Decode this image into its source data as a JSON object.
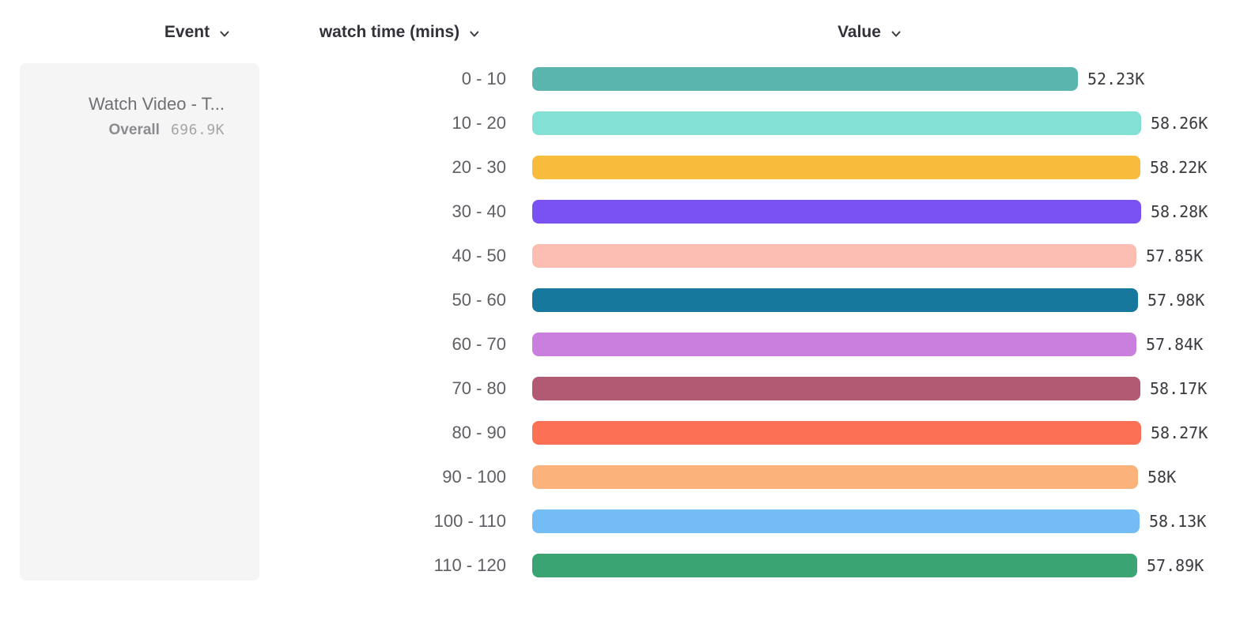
{
  "header": {
    "columns": [
      {
        "id": "event",
        "label": "Event"
      },
      {
        "id": "breakdown",
        "label": "watch time (mins)"
      },
      {
        "id": "value",
        "label": "Value"
      }
    ]
  },
  "event_card": {
    "title": "Watch Video - T...",
    "overall_label": "Overall",
    "overall_value": "696.9K"
  },
  "icons": {
    "chevron_color": "#3a3a40"
  },
  "chart_data": {
    "type": "bar",
    "orientation": "horizontal",
    "title": "",
    "xlabel": "Value",
    "ylabel": "watch time (mins)",
    "xlim": [
      0,
      58280
    ],
    "grid": false,
    "legend_position": "none",
    "categories": [
      "0 - 10",
      "10 - 20",
      "20 - 30",
      "30 - 40",
      "40 - 50",
      "50 - 60",
      "60 - 70",
      "70 - 80",
      "80 - 90",
      "90 - 100",
      "100 - 110",
      "110 - 120"
    ],
    "values": [
      52230,
      58260,
      58220,
      58280,
      57850,
      57980,
      57840,
      58170,
      58270,
      58000,
      58130,
      57890
    ],
    "value_labels": [
      "52.23K",
      "58.26K",
      "58.22K",
      "58.28K",
      "57.85K",
      "57.98K",
      "57.84K",
      "58.17K",
      "58.27K",
      "58K",
      "58.13K",
      "57.89K"
    ],
    "colors": [
      "#59b5ae",
      "#82e0d5",
      "#f7bc3c",
      "#7a52f4",
      "#fcbdb2",
      "#16789d",
      "#ca7edd",
      "#b25a73",
      "#fc7156",
      "#fbb37b",
      "#73bcf4",
      "#3ba473"
    ]
  }
}
